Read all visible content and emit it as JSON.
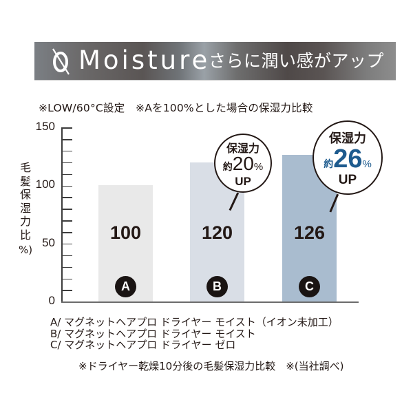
{
  "banner": {
    "logo_icon": "zero-slash-icon",
    "title": "Moisture",
    "subtitle": "さらに潤い感がアップ",
    "gradient_colors": [
      "#7b7f84",
      "#5a5554",
      "#9aa1a7",
      "#4f4948",
      "#8d8d8d"
    ]
  },
  "note": "※LOW/60°C設定　※Aを100%とした場合の保湿力比較",
  "chart_data": {
    "type": "bar",
    "title": "Moisture さらに潤い感がアップ",
    "subtitle": "※LOW/60°C設定　※Aを100%とした場合の保湿力比較",
    "categories": [
      "A",
      "B",
      "C"
    ],
    "values": [
      100,
      120,
      126
    ],
    "value_labels": [
      "100",
      "120",
      "126"
    ],
    "colors": [
      "#e9e9e9",
      "#d9dee6",
      "#a9bccf"
    ],
    "xlabel": "",
    "ylabel": "毛髪保湿力比 (%)",
    "ylim": [
      0,
      150
    ],
    "yticks_major": [
      0,
      50,
      100,
      150
    ],
    "ytick_minor_step": 10,
    "grid": false,
    "legend_position": "bottom",
    "annotations": [
      {
        "target": "B",
        "text": "保湿力 約20% UP"
      },
      {
        "target": "C",
        "text": "保湿力 約26% UP",
        "highlight_color": "#1e5b8e"
      }
    ]
  },
  "yaxis": {
    "label_chars": [
      "毛",
      "髪",
      "保",
      "湿",
      "力",
      "比",
      "%)"
    ],
    "tick_labels": [
      "0",
      "50",
      "100",
      "150"
    ]
  },
  "bars": [
    {
      "badge": "A",
      "value_label": "100"
    },
    {
      "badge": "B",
      "value_label": "120"
    },
    {
      "badge": "C",
      "value_label": "126"
    }
  ],
  "bubbles": {
    "b": {
      "top": "保湿力",
      "approx": "約",
      "number": "20",
      "percent": "%",
      "bottom": "UP",
      "number_color": "#231815"
    },
    "c": {
      "top": "保湿力",
      "approx": "約",
      "number": "26",
      "percent": "%",
      "bottom": "UP",
      "number_color": "#1e5b8e"
    }
  },
  "legend": [
    "A/ マグネットヘアプロ ドライヤー モイスト（イオン未加工）",
    "B/ マグネットヘアプロ ドライヤー モイスト",
    "C/ マグネットヘアプロ ドライヤー ゼロ"
  ],
  "footnote": "※ドライヤー乾燥10分後の毛髪保湿力比較　※(当社調べ)"
}
